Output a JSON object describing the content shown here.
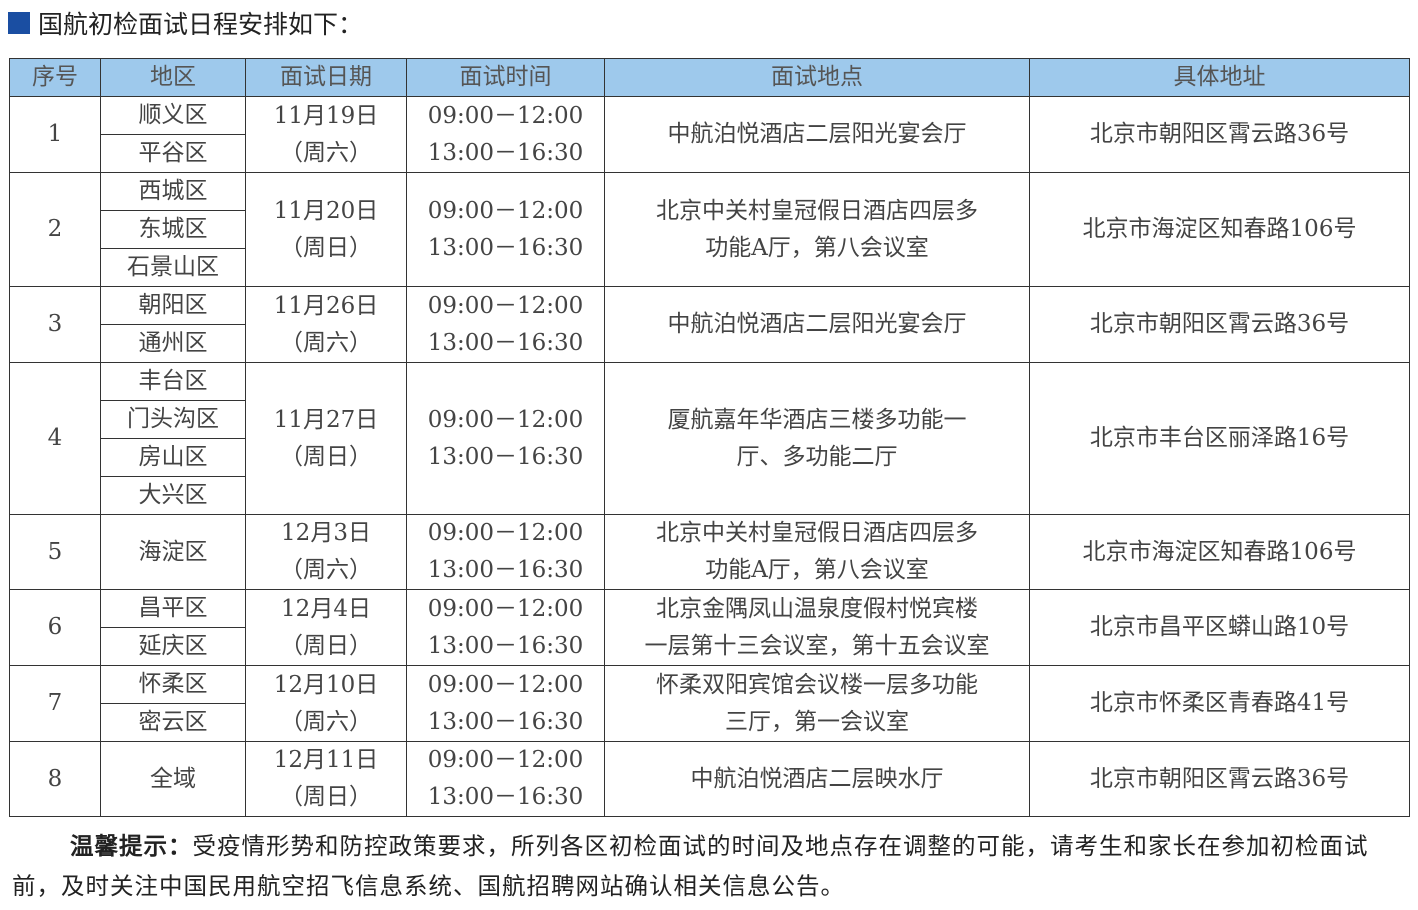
{
  "title": "国航初检面试日程安排如下：",
  "colors": {
    "title_marker": "#1a4ea2",
    "header_bg": "#9ec9ec"
  },
  "table": {
    "headers": [
      "序号",
      "地区",
      "面试日期",
      "面试时间",
      "面试地点",
      "具体地址"
    ],
    "rows": [
      {
        "no": "1",
        "districts": [
          "顺义区",
          "平谷区"
        ],
        "date": "11月19日",
        "weekday": "（周六）",
        "times": [
          "09:00－12:00",
          "13:00－16:30"
        ],
        "venue": [
          "中航泊悦酒店二层阳光宴会厅"
        ],
        "address": "北京市朝阳区霄云路36号"
      },
      {
        "no": "2",
        "districts": [
          "西城区",
          "东城区",
          "石景山区"
        ],
        "date": "11月20日",
        "weekday": "（周日）",
        "times": [
          "09:00－12:00",
          "13:00－16:30"
        ],
        "venue": [
          "北京中关村皇冠假日酒店四层多",
          "功能A厅，第八会议室"
        ],
        "address": "北京市海淀区知春路106号"
      },
      {
        "no": "3",
        "districts": [
          "朝阳区",
          "通州区"
        ],
        "date": "11月26日",
        "weekday": "（周六）",
        "times": [
          "09:00－12:00",
          "13:00－16:30"
        ],
        "venue": [
          "中航泊悦酒店二层阳光宴会厅"
        ],
        "address": "北京市朝阳区霄云路36号"
      },
      {
        "no": "4",
        "districts": [
          "丰台区",
          "门头沟区",
          "房山区",
          "大兴区"
        ],
        "date": "11月27日",
        "weekday": "（周日）",
        "times": [
          "09:00－12:00",
          "13:00－16:30"
        ],
        "venue": [
          "厦航嘉年华酒店三楼多功能一",
          "厅、多功能二厅"
        ],
        "address": "北京市丰台区丽泽路16号"
      },
      {
        "no": "5",
        "districts": [
          "海淀区"
        ],
        "date": "12月3日",
        "weekday": "（周六）",
        "times": [
          "09:00－12:00",
          "13:00－16:30"
        ],
        "venue": [
          "北京中关村皇冠假日酒店四层多",
          "功能A厅，第八会议室"
        ],
        "address": "北京市海淀区知春路106号"
      },
      {
        "no": "6",
        "districts": [
          "昌平区",
          "延庆区"
        ],
        "date": "12月4日",
        "weekday": "（周日）",
        "times": [
          "09:00－12:00",
          "13:00－16:30"
        ],
        "venue": [
          "北京金隅凤山温泉度假村悦宾楼",
          "一层第十三会议室，第十五会议室"
        ],
        "address": "北京市昌平区蟒山路10号"
      },
      {
        "no": "7",
        "districts": [
          "怀柔区",
          "密云区"
        ],
        "date": "12月10日",
        "weekday": "（周六）",
        "times": [
          "09:00－12:00",
          "13:00－16:30"
        ],
        "venue": [
          "怀柔双阳宾馆会议楼一层多功能",
          "三厅，第一会议室"
        ],
        "address": "北京市怀柔区青春路41号"
      },
      {
        "no": "8",
        "districts": [
          "全域"
        ],
        "date": "12月11日",
        "weekday": "（周日）",
        "times": [
          "09:00－12:00",
          "13:00－16:30"
        ],
        "venue": [
          "中航泊悦酒店二层映水厅"
        ],
        "address": "北京市朝阳区霄云路36号"
      }
    ]
  },
  "note": {
    "label": "温馨提示：",
    "text": "受疫情形势和防控政策要求，所列各区初检面试的时间及地点存在调整的可能，请考生和家长在参加初检面试前，及时关注中国民用航空招飞信息系统、国航招聘网站确认相关信息公告。"
  }
}
